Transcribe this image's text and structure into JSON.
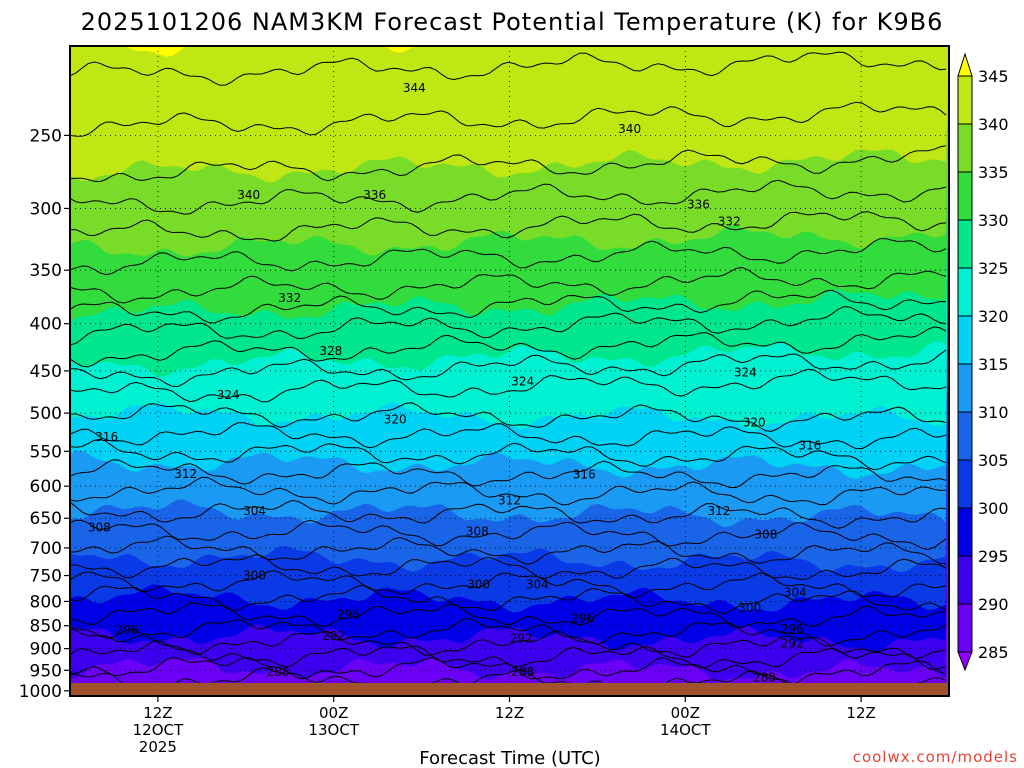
{
  "chart_data": {
    "type": "contour",
    "title": "2025101206 NAM3KM Forecast Potential Temperature (K) for K9B6",
    "xlabel": "Forecast Time (UTC)",
    "ylabel": "",
    "credit": "coolwx.com/models",
    "y_ticks": [
      250,
      300,
      350,
      400,
      450,
      500,
      550,
      600,
      650,
      700,
      750,
      800,
      850,
      900,
      950,
      1000
    ],
    "y_range_hpa": [
      200,
      1013
    ],
    "x_range_hours": [
      0,
      60
    ],
    "x_ticks": [
      {
        "hour": 6,
        "lines": [
          "12Z",
          "12OCT",
          "2025"
        ]
      },
      {
        "hour": 18,
        "lines": [
          "00Z",
          "13OCT"
        ]
      },
      {
        "hour": 30,
        "lines": [
          "12Z"
        ]
      },
      {
        "hour": 42,
        "lines": [
          "00Z",
          "14OCT"
        ]
      },
      {
        "hour": 54,
        "lines": [
          "12Z"
        ]
      }
    ],
    "colorbar": {
      "levels": [
        285,
        290,
        295,
        300,
        305,
        310,
        315,
        320,
        325,
        330,
        335,
        340,
        345
      ],
      "colors": [
        "#8f00ff",
        "#6a00f5",
        "#3c00ee",
        "#0000e6",
        "#0a3ae6",
        "#1a64e8",
        "#1a9af2",
        "#00d2f5",
        "#00f0d2",
        "#00e68c",
        "#32dc3c",
        "#78dc28",
        "#c0e614",
        "#ffff00"
      ]
    },
    "contour_levels": [
      288,
      292,
      296,
      300,
      304,
      308,
      312,
      316,
      320,
      324,
      328,
      332,
      336,
      340,
      344
    ],
    "contour_profile": [
      {
        "theta": 288,
        "pressure": 970
      },
      {
        "theta": 292,
        "pressure": 910
      },
      {
        "theta": 296,
        "pressure": 855
      },
      {
        "theta": 300,
        "pressure": 790
      },
      {
        "theta": 304,
        "pressure": 730
      },
      {
        "theta": 308,
        "pressure": 670
      },
      {
        "theta": 312,
        "pressure": 605
      },
      {
        "theta": 316,
        "pressure": 550
      },
      {
        "theta": 320,
        "pressure": 500
      },
      {
        "theta": 324,
        "pressure": 455
      },
      {
        "theta": 328,
        "pressure": 410
      },
      {
        "theta": 332,
        "pressure": 370
      },
      {
        "theta": 336,
        "pressure": 320
      },
      {
        "theta": 340,
        "pressure": 275
      },
      {
        "theta": 344,
        "pressure": 215
      }
    ],
    "contour_labels": [
      {
        "text": "344",
        "hour": 23.5,
        "pressure": 222
      },
      {
        "text": "340",
        "hour": 38.2,
        "pressure": 246
      },
      {
        "text": "340",
        "hour": 12.2,
        "pressure": 290
      },
      {
        "text": "336",
        "hour": 20.8,
        "pressure": 290
      },
      {
        "text": "336",
        "hour": 42.9,
        "pressure": 297
      },
      {
        "text": "332",
        "hour": 45.0,
        "pressure": 310
      },
      {
        "text": "332",
        "hour": 15.0,
        "pressure": 375
      },
      {
        "text": "328",
        "hour": 17.8,
        "pressure": 428
      },
      {
        "text": "324",
        "hour": 10.8,
        "pressure": 478
      },
      {
        "text": "324",
        "hour": 30.9,
        "pressure": 462
      },
      {
        "text": "324",
        "hour": 46.1,
        "pressure": 452
      },
      {
        "text": "320",
        "hour": 22.2,
        "pressure": 508
      },
      {
        "text": "320",
        "hour": 46.7,
        "pressure": 512
      },
      {
        "text": "316",
        "hour": 2.5,
        "pressure": 531
      },
      {
        "text": "316",
        "hour": 35.1,
        "pressure": 583
      },
      {
        "text": "316",
        "hour": 50.5,
        "pressure": 542
      },
      {
        "text": "312",
        "hour": 7.9,
        "pressure": 582
      },
      {
        "text": "312",
        "hour": 30.0,
        "pressure": 622
      },
      {
        "text": "312",
        "hour": 44.3,
        "pressure": 638
      },
      {
        "text": "308",
        "hour": 2.0,
        "pressure": 665
      },
      {
        "text": "308",
        "hour": 27.8,
        "pressure": 672
      },
      {
        "text": "308",
        "hour": 47.5,
        "pressure": 677
      },
      {
        "text": "304",
        "hour": 12.6,
        "pressure": 638
      },
      {
        "text": "304",
        "hour": 31.9,
        "pressure": 767
      },
      {
        "text": "304",
        "hour": 49.5,
        "pressure": 782
      },
      {
        "text": "300",
        "hour": 12.6,
        "pressure": 750
      },
      {
        "text": "300",
        "hour": 27.9,
        "pressure": 767
      },
      {
        "text": "300",
        "hour": 46.4,
        "pressure": 813
      },
      {
        "text": "296",
        "hour": 3.9,
        "pressure": 859
      },
      {
        "text": "296",
        "hour": 19.0,
        "pressure": 827
      },
      {
        "text": "296",
        "hour": 35.0,
        "pressure": 835
      },
      {
        "text": "296",
        "hour": 49.3,
        "pressure": 857
      },
      {
        "text": "292",
        "hour": 18.0,
        "pressure": 872
      },
      {
        "text": "292",
        "hour": 30.8,
        "pressure": 878
      },
      {
        "text": "292",
        "hour": 49.3,
        "pressure": 889
      },
      {
        "text": "288",
        "hour": 14.2,
        "pressure": 954
      },
      {
        "text": "288",
        "hour": 30.9,
        "pressure": 954
      },
      {
        "text": "288",
        "hour": 47.4,
        "pressure": 967
      }
    ]
  }
}
